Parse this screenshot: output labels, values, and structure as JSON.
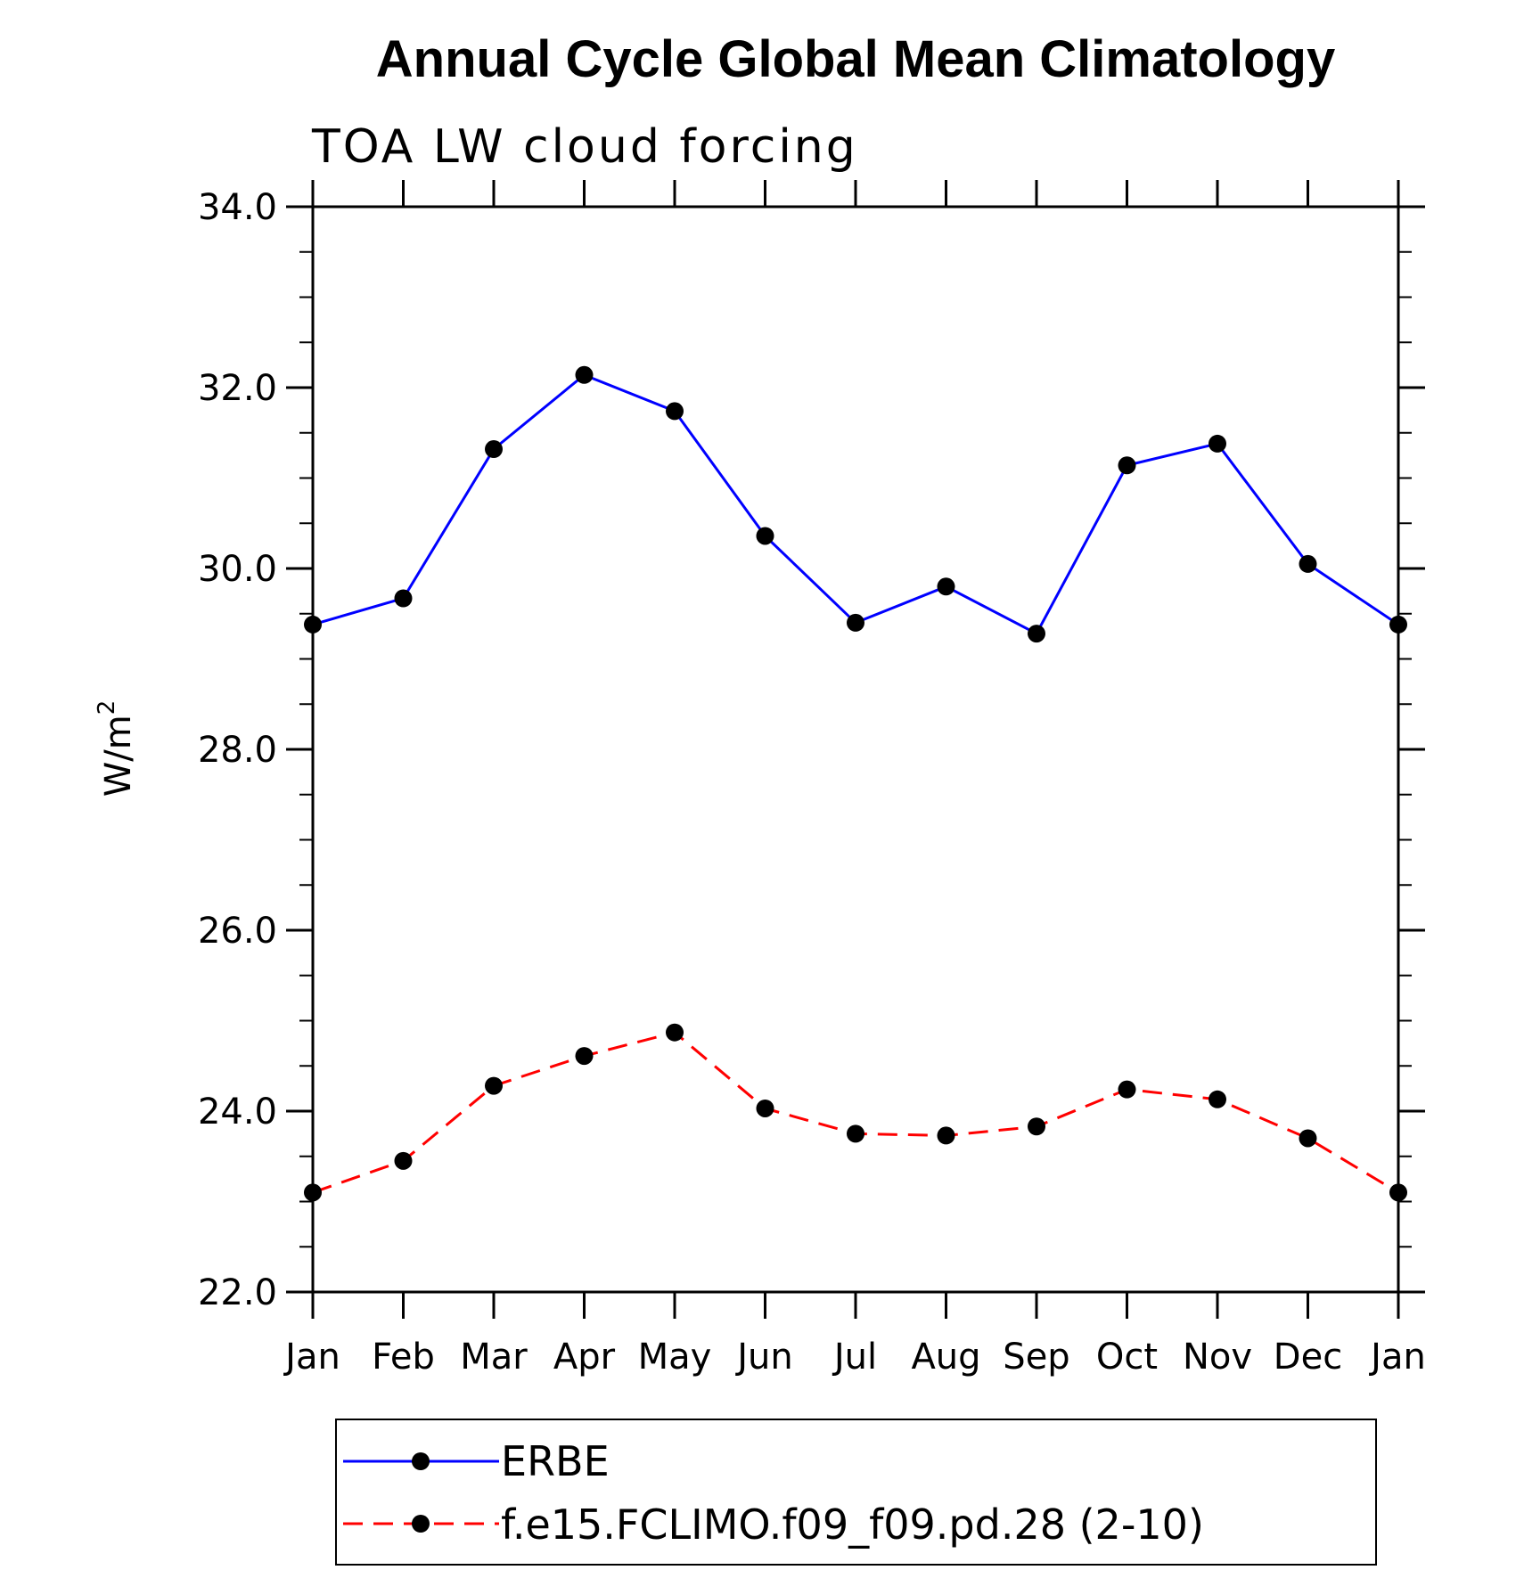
{
  "chart_data": {
    "type": "line",
    "title": "Annual Cycle Global Mean Climatology",
    "subtitle": "TOA LW cloud forcing",
    "xlabel": "",
    "ylabel": "W/m",
    "ylabel_superscript": "2",
    "categories": [
      "Jan",
      "Feb",
      "Mar",
      "Apr",
      "May",
      "Jun",
      "Jul",
      "Aug",
      "Sep",
      "Oct",
      "Nov",
      "Dec",
      "Jan"
    ],
    "ylim": [
      22.0,
      34.0
    ],
    "y_ticks": [
      "22.0",
      "24.0",
      "26.0",
      "28.0",
      "30.0",
      "32.0",
      "34.0"
    ],
    "y_minor_step": 0.5,
    "grid": false,
    "legend_position": "bottom",
    "series": [
      {
        "name": "ERBE",
        "color": "#0000ff",
        "line_style": "solid",
        "marker": "filled-circle",
        "values": [
          29.38,
          29.67,
          31.32,
          32.14,
          31.74,
          30.36,
          29.4,
          29.8,
          29.28,
          31.14,
          31.38,
          30.05,
          29.38
        ]
      },
      {
        "name": "f.e15.FCLIMO.f09_f09.pd.28 (2-10)",
        "color": "#ff0000",
        "line_style": "dashed",
        "marker": "filled-circle",
        "values": [
          23.1,
          23.45,
          24.28,
          24.61,
          24.87,
          24.03,
          23.75,
          23.73,
          23.83,
          24.24,
          24.13,
          23.7,
          23.1
        ]
      }
    ]
  }
}
